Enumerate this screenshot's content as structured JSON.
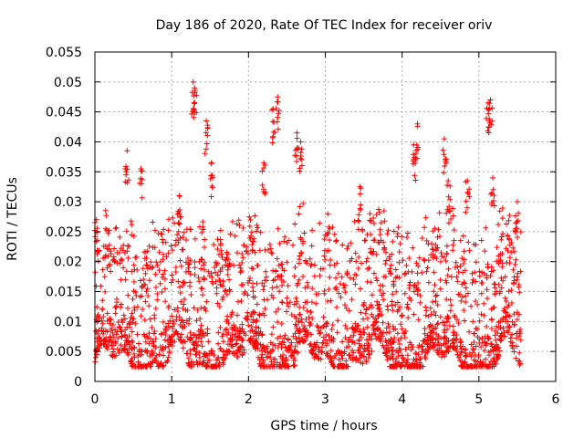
{
  "chart_data": {
    "type": "scatter",
    "title": "Day 186 of 2020, Rate Of TEC Index for receiver oriv",
    "xlabel": "GPS time / hours",
    "ylabel": "ROTI / TECUs",
    "xlim": [
      0,
      6
    ],
    "ylim": [
      0,
      0.055
    ],
    "xticks": [
      "0",
      "1",
      "2",
      "3",
      "4",
      "5",
      "6"
    ],
    "yticks": [
      "0",
      "0.005",
      "0.01",
      "0.015",
      "0.02",
      "0.025",
      "0.03",
      "0.035",
      "0.04",
      "0.045",
      "0.05",
      "0.055"
    ],
    "grid": true,
    "marker": "+",
    "color": "#ff0000",
    "x_range_of_points": [
      0.0,
      5.55
    ],
    "peak_points": [
      {
        "x": 0.02,
        "y": 0.027
      },
      {
        "x": 0.42,
        "y": 0.0385
      },
      {
        "x": 0.6,
        "y": 0.0355
      },
      {
        "x": 1.1,
        "y": 0.031
      },
      {
        "x": 1.28,
        "y": 0.05
      },
      {
        "x": 1.3,
        "y": 0.049
      },
      {
        "x": 1.45,
        "y": 0.0435
      },
      {
        "x": 1.52,
        "y": 0.0365
      },
      {
        "x": 2.2,
        "y": 0.0365
      },
      {
        "x": 2.32,
        "y": 0.0455
      },
      {
        "x": 2.38,
        "y": 0.0475
      },
      {
        "x": 2.63,
        "y": 0.0415
      },
      {
        "x": 2.68,
        "y": 0.04
      },
      {
        "x": 3.45,
        "y": 0.0325
      },
      {
        "x": 4.15,
        "y": 0.0395
      },
      {
        "x": 4.2,
        "y": 0.043
      },
      {
        "x": 4.55,
        "y": 0.0405
      },
      {
        "x": 4.6,
        "y": 0.0335
      },
      {
        "x": 4.85,
        "y": 0.0335
      },
      {
        "x": 5.12,
        "y": 0.0465
      },
      {
        "x": 5.15,
        "y": 0.047
      },
      {
        "x": 5.18,
        "y": 0.034
      },
      {
        "x": 5.5,
        "y": 0.03
      }
    ],
    "typical_band": {
      "low": 0.003,
      "high": 0.025
    }
  }
}
